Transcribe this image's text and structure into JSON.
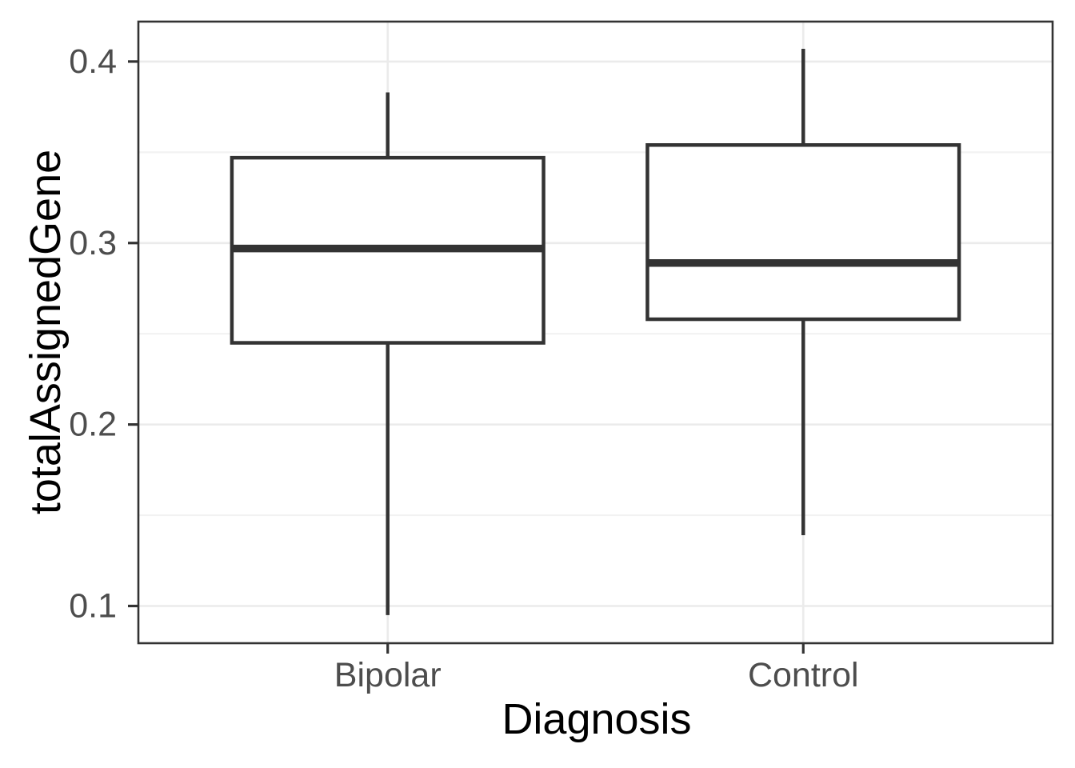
{
  "chart_data": {
    "type": "boxplot",
    "xlabel": "Diagnosis",
    "ylabel": "totalAssignedGene",
    "categories": [
      "Bipolar",
      "Control"
    ],
    "series": [
      {
        "name": "Bipolar",
        "whisker_low": 0.095,
        "q1": 0.245,
        "median": 0.297,
        "q3": 0.347,
        "whisker_high": 0.383
      },
      {
        "name": "Control",
        "whisker_low": 0.139,
        "q1": 0.258,
        "median": 0.289,
        "q3": 0.354,
        "whisker_high": 0.407
      }
    ],
    "ylim": [
      0.0795,
      0.422
    ],
    "yticks_major": [
      0.1,
      0.2,
      0.3,
      0.4
    ],
    "ytick_labels": [
      "0.1",
      "0.2",
      "0.3",
      "0.4"
    ],
    "yticks_minor": [
      0.15,
      0.25,
      0.35
    ],
    "box_width_frac": 0.75,
    "grid": "on",
    "legend": "none",
    "colors": {
      "box_stroke": "#333333",
      "box_fill": "#ffffff",
      "panel_border": "#333333",
      "grid_major": "#ebebeb",
      "grid_minor": "#f2f2f2",
      "tick_mark": "#333333",
      "tick_label": "#4d4d4d",
      "axis_title": "#000000",
      "background": "#ffffff"
    }
  }
}
